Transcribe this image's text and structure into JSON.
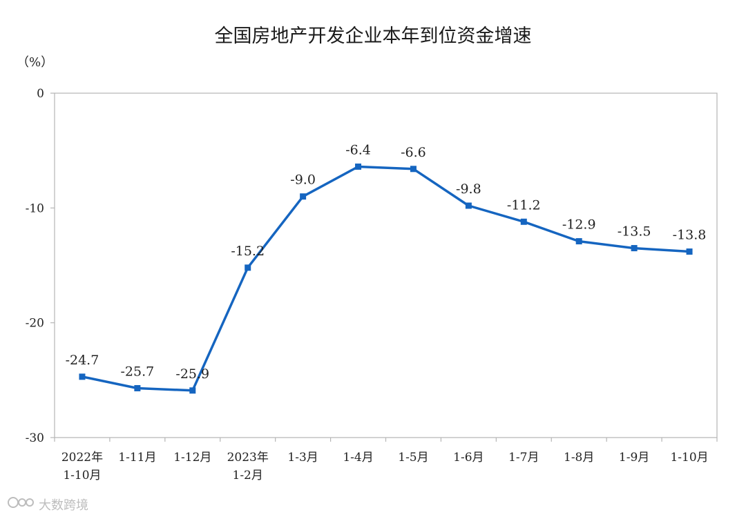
{
  "chart_data": {
    "type": "line",
    "title": "全国房地产开发企业本年到位资金增速",
    "unit_label": "（%）",
    "categories": [
      [
        "2022年",
        "1-10月"
      ],
      [
        "1-11月"
      ],
      [
        "1-12月"
      ],
      [
        "2023年",
        "1-2月"
      ],
      [
        "1-3月"
      ],
      [
        "1-4月"
      ],
      [
        "1-5月"
      ],
      [
        "1-6月"
      ],
      [
        "1-7月"
      ],
      [
        "1-8月"
      ],
      [
        "1-9月"
      ],
      [
        "1-10月"
      ]
    ],
    "values": [
      -24.7,
      -25.7,
      -25.9,
      -15.2,
      -9.0,
      -6.4,
      -6.6,
      -9.8,
      -11.2,
      -12.9,
      -13.5,
      -13.8
    ],
    "data_labels": [
      "-24.7",
      "-25.7",
      "-25.9",
      "-15.2",
      "-9.0",
      "-6.4",
      "-6.6",
      "-9.8",
      "-11.2",
      "-12.9",
      "-13.5",
      "-13.8"
    ],
    "ylim": [
      -30,
      0
    ],
    "yticks": [
      0,
      -10,
      -20,
      -30
    ],
    "ytick_labels": [
      "0",
      "-10",
      "-20",
      "-30"
    ],
    "grid": false,
    "line_color": "#1565c0",
    "marker": "square"
  },
  "watermark": {
    "text": "大数跨境",
    "icon": "logo-icon"
  }
}
